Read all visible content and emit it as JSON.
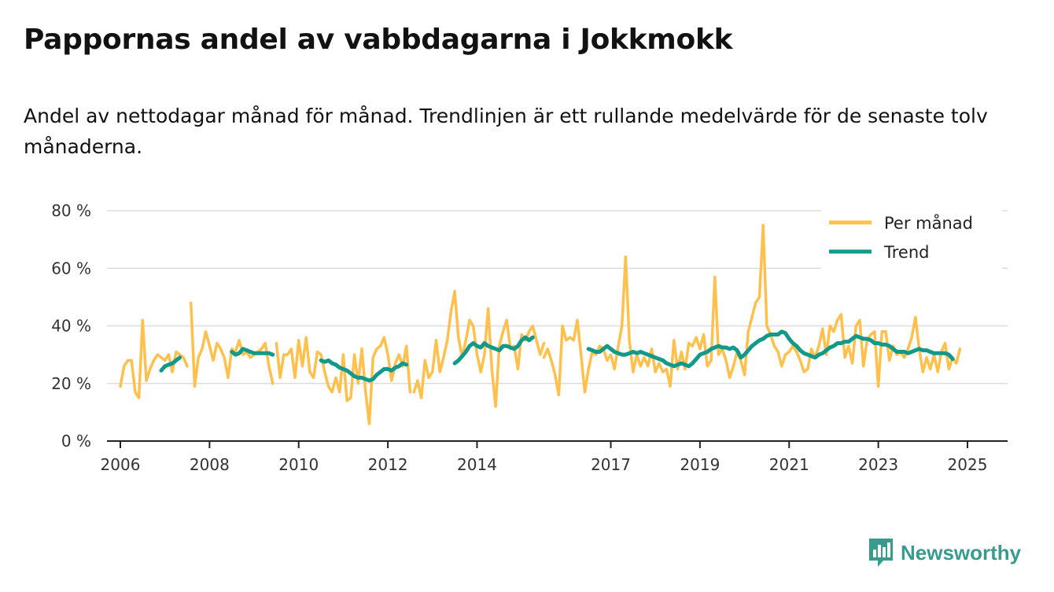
{
  "header": {
    "title": "Pappornas andel av vabbdagarna i Jokkmokk",
    "subtitle": "Andel av nettodagar månad för månad. Trendlinjen är ett rullande medelvärde för de senaste tolv månaderna."
  },
  "brand": {
    "name": "Newsworthy",
    "icon": "newsworthy-logo-icon"
  },
  "colors": {
    "per_month": "#ffc04d",
    "trend": "#12998a",
    "grid": "#dddddd",
    "axis": "#222222"
  },
  "chart_data": {
    "type": "line",
    "title": "Pappornas andel av vabbdagarna i Jokkmokk",
    "xlabel": "",
    "ylabel": "",
    "x_range": [
      2005.7,
      2025.9
    ],
    "ylim": [
      0,
      80
    ],
    "yticks": [
      0,
      20,
      40,
      60,
      80
    ],
    "ytick_labels": [
      "0 %",
      "20 %",
      "40 %",
      "60 %",
      "80 %"
    ],
    "xticks": [
      2006,
      2008,
      2010,
      2012,
      2014,
      2017,
      2019,
      2021,
      2023,
      2025
    ],
    "xtick_labels": [
      "2006",
      "2008",
      "2010",
      "2012",
      "2014",
      "2017",
      "2019",
      "2021",
      "2023",
      "2025"
    ],
    "grid": true,
    "legend": "top-right",
    "series": [
      {
        "name": "Per månad",
        "color": "#ffc04d",
        "segments": [
          {
            "start": 2006.0,
            "values": [
              19,
              26,
              28,
              28,
              17,
              15,
              42,
              21,
              25,
              28,
              30,
              29,
              28,
              30,
              24,
              31,
              30,
              29,
              26
            ]
          },
          {
            "start": 2007.583,
            "values": [
              48,
              19,
              29,
              32,
              38,
              33,
              28,
              34,
              32,
              29,
              22,
              32,
              31,
              35,
              30,
              31,
              29,
              30,
              31,
              32,
              34,
              26,
              20
            ]
          },
          {
            "start": 2009.5,
            "values": [
              34,
              22,
              30,
              30,
              32,
              22,
              35,
              26,
              36,
              24,
              22,
              31,
              30,
              24,
              19,
              17,
              22,
              17,
              30,
              14,
              15,
              30,
              20,
              32,
              17,
              6,
              29,
              32,
              33,
              36,
              30,
              21,
              27,
              30,
              26,
              33,
              17
            ]
          },
          {
            "start": 2012.583,
            "values": [
              17,
              21,
              15,
              28,
              22,
              24,
              35,
              24,
              29,
              35,
              45,
              52,
              36,
              29,
              35,
              42,
              40,
              30,
              24,
              30,
              46,
              25,
              12,
              33,
              38,
              42,
              32,
              33,
              25,
              37,
              35,
              38,
              40,
              35,
              30,
              34
            ]
          },
          {
            "start": 2015.5,
            "values": [
              29,
              32,
              28,
              23,
              16,
              40,
              35,
              36,
              35,
              42,
              30,
              17,
              25,
              31,
              30,
              33,
              32,
              28,
              30,
              25,
              33,
              40,
              64,
              35,
              24,
              30,
              26,
              29,
              26,
              32,
              24,
              27,
              24,
              25,
              19,
              35,
              25,
              31,
              25,
              34,
              33,
              36,
              32,
              37,
              26,
              28,
              57,
              30,
              32,
              28,
              22,
              26,
              31,
              28,
              23,
              38,
              43,
              48,
              50,
              75,
              40,
              37,
              33,
              31,
              26,
              30,
              31,
              33,
              31,
              28,
              24,
              25,
              32,
              29,
              33,
              39,
              30,
              40,
              38,
              42,
              44,
              29,
              33,
              27,
              40,
              42,
              26,
              35,
              37,
              38,
              19,
              38,
              38,
              28,
              33,
              30,
              31,
              29,
              32,
              36,
              43,
              32,
              24,
              29,
              25,
              30,
              24,
              31,
              34,
              25,
              29,
              27,
              32
            ]
          }
        ]
      },
      {
        "name": "Trend",
        "color": "#12998a",
        "segments": [
          {
            "start": 2006.917,
            "values": [
              24.5,
              26,
              26.5,
              27,
              28,
              29
            ]
          },
          {
            "start": 2008.5,
            "values": [
              31,
              30,
              30.5,
              32,
              31.5,
              31,
              30.5,
              30.5,
              30.5,
              30.5,
              30.5,
              30
            ]
          },
          {
            "start": 2010.5,
            "values": [
              28,
              27.5,
              28,
              27,
              26.5,
              25.5,
              25,
              24.5,
              23.5,
              22.5,
              22,
              22,
              21.5,
              21,
              21.5,
              23,
              24,
              25,
              25,
              24.5,
              25.5,
              26,
              27,
              26.5
            ]
          },
          {
            "start": 2013.5,
            "values": [
              27,
              28,
              29.5,
              31,
              33,
              34,
              33,
              32.5,
              34,
              33,
              32.5,
              32,
              31.5,
              33,
              33,
              32.5,
              32,
              33,
              35,
              36,
              35,
              36
            ]
          },
          {
            "start": 2016.5,
            "values": [
              32,
              31.5,
              31,
              31,
              32,
              33,
              32,
              31,
              30.5,
              30,
              30,
              30.5,
              31,
              30.5,
              31,
              30.5,
              30,
              29.5,
              29,
              28.5,
              28,
              27,
              26.5,
              26,
              26.5,
              27,
              26.5,
              26,
              27,
              28.5,
              30,
              30.5,
              31,
              32,
              32.5,
              33,
              32.5,
              32.5,
              32,
              32.5,
              31.5,
              29,
              30,
              31.5,
              33,
              34,
              35,
              35.5,
              36.5,
              37,
              37,
              37,
              38,
              37.5,
              35.5,
              34,
              33,
              31.5,
              30.5,
              30,
              29.5,
              29,
              30,
              30.5,
              31.5,
              32.5,
              33,
              34,
              34,
              34.5,
              34.5,
              35.5,
              36.5,
              36,
              35.5,
              35.5,
              35,
              34,
              34,
              33.5,
              33.5,
              33,
              32,
              31,
              31,
              31,
              30.5,
              31,
              31.5,
              32,
              31.5,
              31.5,
              31,
              30.5,
              30.5,
              30.5,
              30.5,
              30,
              28.5
            ]
          }
        ]
      }
    ]
  }
}
